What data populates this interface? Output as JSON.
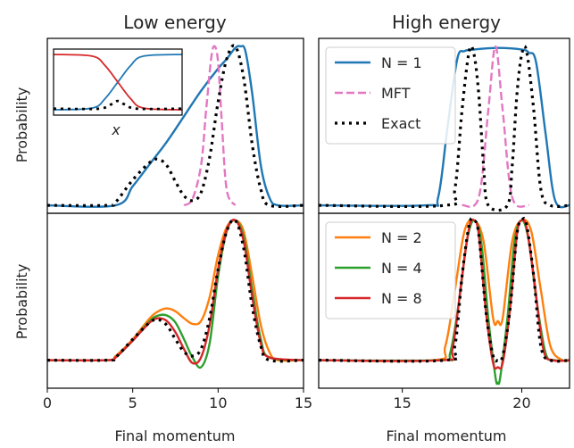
{
  "colors": {
    "N1": "#1f77b4",
    "N2": "#ff7f0e",
    "N4": "#2ca02c",
    "N8": "#d62728",
    "MFT": "#e377c2",
    "Exact": "#000000"
  },
  "chart_data": [
    {
      "id": "low-top",
      "type": "line",
      "title": "Low energy",
      "xlabel": "",
      "ylabel": "Probability",
      "xlim": [
        0,
        15
      ],
      "ylim": [
        -0.05,
        1.05
      ],
      "xticks": [],
      "legend": null,
      "series": [
        {
          "name": "N = 1",
          "style": "solid",
          "color": "N1",
          "x": [
            0,
            4,
            5,
            6,
            7,
            8,
            9,
            10,
            10.5,
            11,
            11.3,
            11.6,
            12,
            12.5,
            13,
            13.5,
            15
          ],
          "y": [
            0,
            0,
            0.12,
            0.26,
            0.4,
            0.56,
            0.72,
            0.86,
            0.92,
            0.99,
            1.0,
            0.97,
            0.7,
            0.25,
            0.05,
            0,
            0
          ]
        },
        {
          "name": "MFT",
          "style": "dashed",
          "color": "MFT",
          "x": [
            8,
            8.5,
            9,
            9.3,
            9.6,
            9.8,
            10,
            10.2,
            10.5,
            11
          ],
          "y": [
            0,
            0.04,
            0.25,
            0.6,
            0.93,
            1.0,
            0.9,
            0.55,
            0.1,
            0
          ]
        },
        {
          "name": "Exact",
          "style": "dotted",
          "color": "Exact",
          "x": [
            0,
            3.5,
            4,
            5,
            6,
            6.5,
            7,
            7.5,
            8,
            8.5,
            9,
            9.5,
            10,
            10.5,
            11,
            11.5,
            12,
            12.5,
            13,
            15
          ],
          "y": [
            0,
            0,
            0.02,
            0.16,
            0.27,
            0.29,
            0.25,
            0.15,
            0.06,
            0.03,
            0.08,
            0.3,
            0.65,
            0.92,
            1.0,
            0.8,
            0.38,
            0.1,
            0,
            0
          ]
        }
      ],
      "inset": {
        "xlabel": "x",
        "series": [
          {
            "name": "inset-blue",
            "style": "solid",
            "color": "N1",
            "x": [
              0,
              0.3,
              0.4,
              0.5,
              0.6,
              0.7,
              1
            ],
            "y": [
              0,
              0.03,
              0.2,
              0.5,
              0.8,
              0.97,
              1
            ]
          },
          {
            "name": "inset-red",
            "style": "solid",
            "color": "N8",
            "x": [
              0,
              0.3,
              0.4,
              0.5,
              0.6,
              0.7,
              1
            ],
            "y": [
              1,
              0.97,
              0.8,
              0.5,
              0.2,
              0.03,
              0
            ]
          },
          {
            "name": "inset-exact",
            "style": "dotted",
            "color": "Exact",
            "x": [
              0,
              0.35,
              0.45,
              0.5,
              0.55,
              0.65,
              1
            ],
            "y": [
              0.02,
              0.02,
              0.1,
              0.16,
              0.1,
              0.02,
              0.02
            ]
          }
        ]
      }
    },
    {
      "id": "high-top",
      "type": "line",
      "title": "High energy",
      "xlabel": "",
      "ylabel": "",
      "xlim": [
        11.5,
        22
      ],
      "ylim": [
        -0.05,
        1.05
      ],
      "xticks": [],
      "legend": {
        "placement": "upper-left",
        "entries": [
          {
            "label": "N = 1",
            "style": "solid",
            "color": "N1"
          },
          {
            "label": "MFT",
            "style": "dashed",
            "color": "MFT"
          },
          {
            "label": "Exact",
            "style": "dotted",
            "color": "Exact"
          }
        ]
      },
      "series": [
        {
          "name": "N = 1",
          "style": "solid",
          "color": "N1",
          "x": [
            11.5,
            16,
            16.5,
            16.9,
            17.3,
            17.6,
            18,
            19,
            20,
            20.3,
            20.6,
            21,
            21.4,
            22
          ],
          "y": [
            0,
            0,
            0.05,
            0.5,
            0.92,
            0.97,
            0.98,
            0.99,
            0.98,
            0.96,
            0.9,
            0.45,
            0.03,
            0
          ]
        },
        {
          "name": "MFT",
          "style": "dashed",
          "color": "MFT",
          "x": [
            17.5,
            18.2,
            18.6,
            18.9,
            19.2,
            19.6,
            20.3
          ],
          "y": [
            0,
            0.05,
            0.6,
            1.0,
            0.6,
            0.05,
            0
          ]
        },
        {
          "name": "Exact",
          "style": "dotted",
          "color": "Exact",
          "x": [
            11.5,
            16.8,
            17.2,
            17.5,
            17.8,
            18,
            18.2,
            18.4,
            18.6,
            19.4,
            19.6,
            19.8,
            20,
            20.2,
            20.5,
            20.8,
            21.2,
            22
          ],
          "y": [
            0,
            0,
            0.1,
            0.6,
            0.97,
            0.95,
            0.7,
            0.25,
            0,
            0,
            0.25,
            0.7,
            0.95,
            0.97,
            0.6,
            0.1,
            0,
            0
          ]
        }
      ]
    },
    {
      "id": "low-bottom",
      "type": "line",
      "title": "",
      "xlabel": "Final momentum",
      "ylabel": "Probability",
      "xlim": [
        0,
        15
      ],
      "ylim": [
        -0.2,
        1.05
      ],
      "xticks": [
        0,
        5,
        10,
        15
      ],
      "legend": null,
      "series": [
        {
          "name": "N = 2",
          "style": "solid",
          "color": "N2",
          "x": [
            0,
            3.5,
            4,
            5,
            6,
            6.5,
            7,
            7.5,
            8,
            8.5,
            9,
            9.5,
            10,
            10.5,
            11,
            11.5,
            12,
            12.5,
            13,
            13.5,
            15
          ],
          "y": [
            0,
            0,
            0.03,
            0.15,
            0.3,
            0.35,
            0.37,
            0.35,
            0.3,
            0.26,
            0.28,
            0.45,
            0.75,
            0.95,
            1.0,
            0.92,
            0.6,
            0.25,
            0.06,
            0,
            0
          ]
        },
        {
          "name": "N = 4",
          "style": "solid",
          "color": "N4",
          "x": [
            0,
            3.5,
            4,
            5,
            6,
            6.5,
            7,
            7.5,
            8,
            8.5,
            9,
            9.5,
            10,
            10.5,
            11,
            11.5,
            12,
            12.5,
            13,
            15
          ],
          "y": [
            0,
            0,
            0.02,
            0.14,
            0.28,
            0.32,
            0.32,
            0.27,
            0.15,
            0.02,
            -0.05,
            0.12,
            0.6,
            0.92,
            1.0,
            0.88,
            0.5,
            0.15,
            0.02,
            0
          ]
        },
        {
          "name": "N = 8",
          "style": "solid",
          "color": "N8",
          "x": [
            0,
            3.5,
            4,
            5,
            6,
            6.5,
            7,
            7.5,
            8,
            8.5,
            9,
            9.5,
            10,
            10.5,
            11,
            11.5,
            12,
            12.5,
            13,
            15
          ],
          "y": [
            0,
            0,
            0.02,
            0.14,
            0.27,
            0.3,
            0.28,
            0.2,
            0.08,
            -0.02,
            0.02,
            0.25,
            0.65,
            0.93,
            1.0,
            0.85,
            0.45,
            0.12,
            0.02,
            0
          ]
        },
        {
          "name": "Exact",
          "style": "dotted",
          "color": "Exact",
          "x": [
            0,
            3.5,
            4,
            5,
            6,
            6.5,
            7,
            7.5,
            8,
            8.5,
            9,
            9.5,
            10,
            10.5,
            11,
            11.5,
            12,
            12.5,
            13,
            15
          ],
          "y": [
            0,
            0,
            0.02,
            0.15,
            0.27,
            0.29,
            0.25,
            0.15,
            0.06,
            0.03,
            0.08,
            0.3,
            0.65,
            0.92,
            1.0,
            0.8,
            0.38,
            0.1,
            0,
            0
          ]
        }
      ]
    },
    {
      "id": "high-bottom",
      "type": "line",
      "title": "",
      "xlabel": "Final momentum",
      "ylabel": "",
      "xlim": [
        11.5,
        22
      ],
      "ylim": [
        -0.2,
        1.05
      ],
      "xticks": [
        15,
        20
      ],
      "legend": {
        "placement": "upper-left",
        "entries": [
          {
            "label": "N = 2",
            "style": "solid",
            "color": "N2"
          },
          {
            "label": "N = 4",
            "style": "solid",
            "color": "N4"
          },
          {
            "label": "N = 8",
            "style": "solid",
            "color": "N8"
          }
        ]
      },
      "series": [
        {
          "name": "N = 2",
          "style": "solid",
          "color": "N2",
          "x": [
            11.5,
            16.3,
            16.8,
            17.2,
            17.6,
            18,
            18.4,
            18.8,
            19,
            19.2,
            19.6,
            20,
            20.4,
            20.8,
            21.2,
            21.7,
            22
          ],
          "y": [
            0,
            0,
            0.1,
            0.5,
            0.92,
            1.0,
            0.85,
            0.3,
            0.28,
            0.3,
            0.85,
            1.0,
            0.92,
            0.5,
            0.1,
            0,
            0
          ]
        },
        {
          "name": "N = 4",
          "style": "solid",
          "color": "N4",
          "x": [
            11.5,
            16.6,
            17,
            17.4,
            17.7,
            18,
            18.3,
            18.6,
            18.9,
            19,
            19.1,
            19.4,
            19.7,
            20,
            20.3,
            20.6,
            21,
            21.4,
            22
          ],
          "y": [
            0,
            0,
            0.05,
            0.45,
            0.85,
            1.0,
            0.85,
            0.3,
            -0.12,
            -0.16,
            -0.12,
            0.3,
            0.85,
            1.0,
            0.85,
            0.45,
            0.05,
            0,
            0
          ]
        },
        {
          "name": "N = 8",
          "style": "solid",
          "color": "N8",
          "x": [
            11.5,
            16.7,
            17.1,
            17.5,
            17.8,
            18,
            18.2,
            18.5,
            18.8,
            19,
            19.2,
            19.5,
            19.8,
            20,
            20.2,
            20.5,
            20.9,
            21.3,
            22
          ],
          "y": [
            0,
            0,
            0.08,
            0.6,
            0.95,
            1.0,
            0.9,
            0.35,
            -0.02,
            -0.05,
            -0.02,
            0.35,
            0.9,
            1.0,
            0.95,
            0.6,
            0.08,
            0,
            0
          ]
        },
        {
          "name": "Exact",
          "style": "dotted",
          "color": "Exact",
          "x": [
            11.5,
            16.8,
            17.2,
            17.5,
            17.8,
            18,
            18.2,
            18.5,
            18.8,
            19,
            19.2,
            19.5,
            19.8,
            20,
            20.2,
            20.5,
            20.8,
            21.2,
            22
          ],
          "y": [
            0,
            0,
            0.1,
            0.6,
            0.97,
            1.0,
            0.9,
            0.35,
            0.03,
            0,
            0.03,
            0.35,
            0.9,
            1.0,
            0.97,
            0.6,
            0.1,
            0,
            0
          ]
        }
      ]
    }
  ]
}
